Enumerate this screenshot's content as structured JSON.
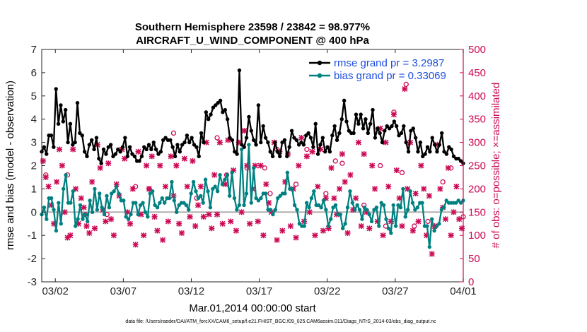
{
  "chart_data": {
    "type": "line",
    "title": [
      "Southern Hemisphere 23598 / 23842 = 98.977%",
      "AIRCRAFT_U_WIND_COMPONENT @ 400 hPa"
    ],
    "xlabel": "Mar.01,2014 00:00:00 start",
    "ylabel_left": "rmse and bias (model - observation)",
    "ylabel_right": "# of obs: o=possible; ×=assimilated",
    "xlim": [
      0,
      31
    ],
    "ylim_left": [
      -3,
      7
    ],
    "ylim_right": [
      0,
      500
    ],
    "x_ticks": [
      {
        "pos": 1,
        "label": "03/02"
      },
      {
        "pos": 6,
        "label": "03/07"
      },
      {
        "pos": 11,
        "label": "03/12"
      },
      {
        "pos": 16,
        "label": "03/17"
      },
      {
        "pos": 21,
        "label": "03/22"
      },
      {
        "pos": 26,
        "label": "03/27"
      },
      {
        "pos": 31,
        "label": "04/01"
      }
    ],
    "y_ticks_left": [
      "-3",
      "-2",
      "-1",
      "0",
      "1",
      "2",
      "3",
      "4",
      "5",
      "6",
      "7"
    ],
    "y_ticks_right": [
      "0",
      "50",
      "100",
      "150",
      "200",
      "250",
      "300",
      "350",
      "400",
      "450",
      "500"
    ],
    "colors": {
      "rmse": "#000000",
      "bias": "#008080",
      "obs": "#cc0a55",
      "right_axis": "#cc0a55",
      "zero_line": "#b0b0b0",
      "legend_text": "#1f4fe0"
    },
    "series": [
      {
        "name": "rmse grand pr = 3.2987",
        "axis": "left",
        "values": [
          2.6,
          2.8,
          2.5,
          3.3,
          3.3,
          2.8,
          5.3,
          3.8,
          4.6,
          3.9,
          4.4,
          3.0,
          3.8,
          2.9,
          3.0,
          4.7,
          3.4,
          3.3,
          2.6,
          2.4,
          2.9,
          3.1,
          2.7,
          3.2,
          2.3,
          2.1,
          2.7,
          2.5,
          2.8,
          2.9,
          2.4,
          2.5,
          2.7,
          2.6,
          2.8,
          3.2,
          2.4,
          2.8,
          2.5,
          2.4,
          2.2,
          2.2,
          2.4,
          2.8,
          2.7,
          2.9,
          2.7,
          3.0,
          2.7,
          2.5,
          2.6,
          3.1,
          3.2,
          3.1,
          3.1,
          2.8,
          2.4,
          2.9,
          2.6,
          2.9,
          3.0,
          3.3,
          3.0,
          3.2,
          2.9,
          2.8,
          2.4,
          3.4,
          3.0,
          4.3,
          4.0,
          4.2,
          4.5,
          4.6,
          4.7,
          4.8,
          4.3,
          4.4,
          4.0,
          3.2,
          3.1,
          2.6,
          2.5,
          6.1,
          2.9,
          2.8,
          3.2,
          4.1,
          3.5,
          3.1,
          2.9,
          4.6,
          3.0,
          3.7,
          3.2,
          3.0,
          2.6,
          2.4,
          3.0,
          2.6,
          2.4,
          3.0,
          3.1,
          2.4,
          2.8,
          3.5,
          3.2,
          3.1,
          2.9,
          3.0,
          2.9,
          3.3,
          3.4,
          3.2,
          2.8,
          3.8,
          2.5,
          2.9,
          3.2,
          2.6,
          2.8,
          2.6,
          3.3,
          3.7,
          3.1,
          3.4,
          4.0,
          4.8,
          3.9,
          3.5,
          3.4,
          3.4,
          4.2,
          3.8,
          4.2,
          3.6,
          4.0,
          3.4,
          3.8,
          4.4,
          3.2,
          3.6,
          3.4,
          3.0,
          3.5,
          3.7,
          3.6,
          3.7,
          3.9,
          3.7,
          3.3,
          3.4,
          3.7,
          3.0,
          2.6,
          3.5,
          3.6,
          3.2,
          2.6,
          3.0,
          2.4,
          2.5,
          2.8,
          2.6,
          3.2,
          2.9,
          2.6,
          2.9,
          3.4,
          2.6,
          2.5,
          2.8,
          2.7,
          2.4,
          2.3,
          2.3,
          2.2,
          2.1
        ]
      },
      {
        "name": "bias grand pr = 0.33069",
        "axis": "left",
        "values": [
          -0.1,
          0.2,
          -0.3,
          0.6,
          0.6,
          0.1,
          -0.8,
          0.4,
          -0.5,
          1.0,
          1.6,
          0.4,
          0.4,
          0.9,
          -0.6,
          -0.3,
          0.3,
          -0.3,
          -0.1,
          -0.4,
          0.5,
          0.0,
          1.0,
          0.1,
          0.8,
          0.2,
          -0.1,
          0.7,
          0.2,
          0.8,
          0.9,
          1.1,
          0.8,
          0.5,
          0.5,
          -0.2,
          -0.3,
          -0.1,
          0.4,
          0.4,
          -0.1,
          0.3,
          0.4,
          0.0,
          -0.2,
          0.8,
          0.9,
          0.3,
          0.2,
          0.4,
          0.6,
          0.4,
          0.6,
          0.6,
          1.3,
          0.5,
          0.0,
          0.3,
          0.4,
          0.4,
          0.3,
          0.1,
          0.8,
          1.3,
          0.9,
          0.6,
          0.7,
          0.4,
          1.4,
          0.9,
          0.2,
          1.0,
          1.1,
          0.9,
          1.6,
          1.2,
          1.4,
          1.6,
          0.7,
          1.7,
          0.6,
          0.1,
          0.3,
          2.7,
          0.3,
          0.8,
          2.9,
          0.4,
          1.9,
          0.6,
          0.5,
          0.6,
          0.8,
          0.8,
          0.1,
          0.1,
          -0.1,
          0.1,
          0.6,
          0.7,
          0.8,
          0.8,
          1.7,
          1.0,
          1.0,
          0.3,
          0.1,
          -0.5,
          -0.6,
          -0.6,
          0.4,
          0.2,
          0.6,
          0.9,
          0.3,
          0.3,
          0.2,
          0.5,
          0.1,
          -0.6,
          -0.3,
          0.2,
          0.3,
          -0.1,
          -0.1,
          -0.7,
          -0.5,
          0.2,
          0.9,
          0.4,
          0.1,
          0.3,
          0.1,
          -0.3,
          0.2,
          0.1,
          -0.1,
          -0.4,
          0.1,
          0.2,
          -0.6,
          0.4,
          0.3,
          -0.3,
          -0.7,
          -0.9,
          0.3,
          -0.6,
          0.3,
          0.2,
          1.0,
          -0.2,
          0.1,
          0.9,
          0.4,
          0.1,
          0.2,
          0.4,
          0.4,
          -0.6,
          -0.6,
          -1.5,
          -0.3,
          -0.8,
          -0.6,
          -0.5,
          0.1,
          0.2,
          0.5,
          0.4,
          0.4,
          0.4,
          0.4,
          0.5,
          0.4,
          0.5
        ]
      },
      {
        "name": "assimilated",
        "axis": "right",
        "marker": "x",
        "points": [
          [
            0.1,
            260
          ],
          [
            0.3,
            225
          ],
          [
            0.5,
            205
          ],
          [
            0.7,
            165
          ],
          [
            0.9,
            125
          ],
          [
            1.1,
            215
          ],
          [
            1.3,
            285
          ],
          [
            1.5,
            250
          ],
          [
            1.7,
            150
          ],
          [
            1.9,
            95
          ],
          [
            2.1,
            100
          ],
          [
            2.3,
            285
          ],
          [
            2.5,
            200
          ],
          [
            2.7,
            125
          ],
          [
            2.9,
            180
          ],
          [
            3.1,
            160
          ],
          [
            3.3,
            120
          ],
          [
            3.5,
            105
          ],
          [
            3.7,
            215
          ],
          [
            3.9,
            115
          ],
          [
            4.1,
            295
          ],
          [
            4.3,
            245
          ],
          [
            4.5,
            155
          ],
          [
            4.7,
            130
          ],
          [
            4.9,
            255
          ],
          [
            5.1,
            135
          ],
          [
            5.3,
            100
          ],
          [
            5.5,
            210
          ],
          [
            5.7,
            185
          ],
          [
            5.9,
            285
          ],
          [
            6.1,
            265
          ],
          [
            6.3,
            150
          ],
          [
            6.5,
            125
          ],
          [
            6.7,
            200
          ],
          [
            6.9,
            80
          ],
          [
            7.1,
            280
          ],
          [
            7.3,
            145
          ],
          [
            7.5,
            100
          ],
          [
            7.7,
            250
          ],
          [
            7.9,
            200
          ],
          [
            8.1,
            270
          ],
          [
            8.3,
            140
          ],
          [
            8.5,
            110
          ],
          [
            8.7,
            250
          ],
          [
            8.9,
            90
          ],
          [
            9.1,
            205
          ],
          [
            9.3,
            130
          ],
          [
            9.5,
            270
          ],
          [
            9.7,
            185
          ],
          [
            9.9,
            250
          ],
          [
            10.1,
            125
          ],
          [
            10.3,
            105
          ],
          [
            10.5,
            265
          ],
          [
            10.7,
            205
          ],
          [
            10.9,
            140
          ],
          [
            11.1,
            260
          ],
          [
            11.3,
            120
          ],
          [
            11.5,
            165
          ],
          [
            11.7,
            205
          ],
          [
            11.9,
            140
          ],
          [
            12.1,
            300
          ],
          [
            12.3,
            145
          ],
          [
            12.5,
            115
          ],
          [
            12.7,
            230
          ],
          [
            12.9,
            145
          ],
          [
            13.1,
            300
          ],
          [
            13.3,
            125
          ],
          [
            13.5,
            210
          ],
          [
            13.7,
            305
          ],
          [
            13.9,
            130
          ],
          [
            14.1,
            240
          ],
          [
            14.3,
            110
          ],
          [
            14.5,
            300
          ],
          [
            14.7,
            150
          ],
          [
            14.9,
            325
          ],
          [
            15.1,
            250
          ],
          [
            15.3,
            125
          ],
          [
            15.5,
            200
          ],
          [
            15.7,
            250
          ],
          [
            15.9,
            130
          ],
          [
            16.1,
            250
          ],
          [
            16.3,
            100
          ],
          [
            16.5,
            210
          ],
          [
            16.7,
            170
          ],
          [
            16.9,
            150
          ],
          [
            17.1,
            300
          ],
          [
            17.3,
            90
          ],
          [
            17.5,
            280
          ],
          [
            17.7,
            110
          ],
          [
            17.9,
            215
          ],
          [
            18.1,
            275
          ],
          [
            18.3,
            120
          ],
          [
            18.5,
            200
          ],
          [
            18.7,
            95
          ],
          [
            18.9,
            250
          ],
          [
            19.1,
            310
          ],
          [
            19.3,
            130
          ],
          [
            19.5,
            270
          ],
          [
            19.7,
            150
          ],
          [
            19.9,
            280
          ],
          [
            20.1,
            100
          ],
          [
            20.3,
            205
          ],
          [
            20.5,
            285
          ],
          [
            20.7,
            110
          ],
          [
            20.9,
            180
          ],
          [
            21.1,
            115
          ],
          [
            21.3,
            245
          ],
          [
            21.5,
            180
          ],
          [
            21.7,
            145
          ],
          [
            21.9,
            200
          ],
          [
            22.1,
            275
          ],
          [
            22.3,
            215
          ],
          [
            22.5,
            105
          ],
          [
            22.7,
            230
          ],
          [
            22.9,
            155
          ],
          [
            23.1,
            180
          ],
          [
            23.3,
            300
          ],
          [
            23.5,
            120
          ],
          [
            23.7,
            275
          ],
          [
            23.9,
            150
          ],
          [
            24.1,
            115
          ],
          [
            24.3,
            250
          ],
          [
            24.5,
            200
          ],
          [
            24.7,
            130
          ],
          [
            24.9,
            330
          ],
          [
            25.1,
            100
          ],
          [
            25.3,
            300
          ],
          [
            25.5,
            205
          ],
          [
            25.7,
            130
          ],
          [
            25.9,
            360
          ],
          [
            26.1,
            240
          ],
          [
            26.3,
            180
          ],
          [
            26.5,
            120
          ],
          [
            26.7,
            415
          ],
          [
            26.9,
            200
          ],
          [
            27.1,
            300
          ],
          [
            27.3,
            110
          ],
          [
            27.5,
            190
          ],
          [
            27.7,
            130
          ],
          [
            27.9,
            250
          ],
          [
            28.1,
            200
          ],
          [
            28.3,
            100
          ],
          [
            28.5,
            185
          ],
          [
            28.7,
            60
          ],
          [
            28.9,
            120
          ],
          [
            29.1,
            295
          ],
          [
            29.3,
            200
          ],
          [
            29.5,
            160
          ],
          [
            29.7,
            135
          ],
          [
            29.9,
            245
          ],
          [
            30.1,
            100
          ],
          [
            30.3,
            150
          ],
          [
            30.5,
            205
          ],
          [
            30.7,
            135
          ],
          [
            30.9,
            115
          ]
        ]
      },
      {
        "name": "possible",
        "axis": "right",
        "marker": "o",
        "points": [
          [
            0.3,
            230
          ],
          [
            1.9,
            230
          ],
          [
            3.2,
            145
          ],
          [
            4.8,
            145
          ],
          [
            6.9,
            205
          ],
          [
            7.9,
            200
          ],
          [
            9.7,
            320
          ],
          [
            11.4,
            180
          ],
          [
            12.9,
            310
          ],
          [
            13.6,
            230
          ],
          [
            15.1,
            245
          ],
          [
            16.4,
            245
          ],
          [
            16.8,
            190
          ],
          [
            17.3,
            285
          ],
          [
            18.7,
            210
          ],
          [
            19.5,
            285
          ],
          [
            20.9,
            190
          ],
          [
            21.6,
            260
          ],
          [
            22.1,
            255
          ],
          [
            23.7,
            165
          ],
          [
            24.9,
            250
          ],
          [
            25.3,
            120
          ],
          [
            25.9,
            365
          ],
          [
            26.5,
            235
          ],
          [
            26.8,
            425
          ],
          [
            27.4,
            120
          ],
          [
            28.4,
            130
          ],
          [
            29.5,
            215
          ],
          [
            30.1,
            245
          ],
          [
            31.0,
            140
          ]
        ]
      }
    ]
  },
  "legend": {
    "rmse": "rmse grand pr = 3.2987",
    "bias": "bias grand pr = 0.33069"
  },
  "footnote": "data file: /Users/raeder/DAI/ATM_forcXX/CAM6_setup/f.e21.FHIST_BGC.f09_025.CAM6assim.011/Diags_NTrS_2014-03/obs_diag_output.nc"
}
